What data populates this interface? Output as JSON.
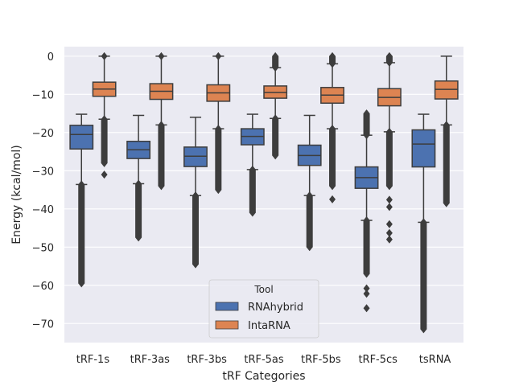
{
  "chart_data": {
    "type": "boxplot",
    "xlabel": "tRF Categories",
    "ylabel": "Energy (kcal/mol)",
    "ylim": [
      -75,
      2.5
    ],
    "yticks": [
      0,
      -10,
      -20,
      -30,
      -40,
      -50,
      -60,
      -70
    ],
    "ytick_labels": [
      "0",
      "−10",
      "−20",
      "−30",
      "−40",
      "−50",
      "−60",
      "−70"
    ],
    "grid": true,
    "categories": [
      "tRF-1s",
      "tRF-3as",
      "tRF-3bs",
      "tRF-5as",
      "tRF-5bs",
      "tRF-5cs",
      "tsRNA"
    ],
    "legend": {
      "title": "Tool",
      "position": "lower center"
    },
    "series": [
      {
        "name": "RNAhybrid",
        "color": "#4c72b0",
        "boxes": [
          {
            "q1": -24.3,
            "median": -20.5,
            "q3": -18.1,
            "whisker_low": -33.6,
            "whisker_high": -15.2,
            "outliers_from": -33.6,
            "outliers_to": -59.5
          },
          {
            "q1": -26.8,
            "median": -24.5,
            "q3": -22.3,
            "whisker_low": -33.4,
            "whisker_high": -15.5,
            "outliers_from": -33.4,
            "outliers_to": -47.5
          },
          {
            "q1": -28.9,
            "median": -26.2,
            "q3": -23.8,
            "whisker_low": -36.5,
            "whisker_high": -16.0,
            "outliers_from": -36.5,
            "outliers_to": -54.5
          },
          {
            "q1": -23.2,
            "median": -21.0,
            "q3": -19.0,
            "whisker_low": -29.7,
            "whisker_high": -15.2,
            "outliers_from": -29.7,
            "outliers_to": -41.0
          },
          {
            "q1": -28.6,
            "median": -26.0,
            "q3": -23.3,
            "whisker_low": -36.5,
            "whisker_high": -15.5,
            "outliers_from": -36.5,
            "outliers_to": -50.0
          },
          {
            "q1": -34.6,
            "median": -31.8,
            "q3": -29.0,
            "whisker_low": -43.0,
            "whisker_high": -20.7,
            "outliers_from": -43.0,
            "outliers_to": -57.0,
            "outliers_high_from": -20.7,
            "outliers_high_to": -15.0,
            "extra_outliers": [
              -60.8,
              -62.2,
              -66.0
            ]
          },
          {
            "q1": -29.0,
            "median": -23.0,
            "q3": -19.3,
            "whisker_low": -43.5,
            "whisker_high": -15.2,
            "outliers_from": -43.5,
            "outliers_to": -71.5
          }
        ]
      },
      {
        "name": "IntaRNA",
        "color": "#dd8452",
        "boxes": [
          {
            "q1": -10.5,
            "median": -8.6,
            "q3": -6.8,
            "whisker_low": -16.5,
            "whisker_high": 0,
            "outliers_from": -16.5,
            "outliers_to": -28.0,
            "extra_outliers": [
              -31.0
            ],
            "upper_outliers": true
          },
          {
            "q1": -11.3,
            "median": -9.2,
            "q3": -7.2,
            "whisker_low": -18.0,
            "whisker_high": 0,
            "outliers_from": -18.0,
            "outliers_to": -34.0,
            "upper_outliers": true
          },
          {
            "q1": -11.8,
            "median": -9.6,
            "q3": -7.5,
            "whisker_low": -19.0,
            "whisker_high": 0,
            "outliers_from": -19.0,
            "outliers_to": -35.0,
            "upper_outliers": true
          },
          {
            "q1": -11.0,
            "median": -9.5,
            "q3": -7.8,
            "whisker_low": -16.3,
            "whisker_high": -3.0,
            "outliers_from": -16.3,
            "outliers_to": -26.0,
            "upper_from": -3.0,
            "upper_to": 0,
            "upper_outliers": true
          },
          {
            "q1": -12.3,
            "median": -10.2,
            "q3": -8.2,
            "whisker_low": -19.0,
            "whisker_high": -2.0,
            "outliers_from": -19.0,
            "outliers_to": -34.0,
            "extra_outliers": [
              -37.5
            ],
            "upper_from": -2.0,
            "upper_to": 0,
            "upper_outliers": true
          },
          {
            "q1": -13.0,
            "median": -10.8,
            "q3": -8.5,
            "whisker_low": -19.8,
            "whisker_high": -1.7,
            "outliers_from": -19.8,
            "outliers_to": -34.0,
            "extra_outliers": [
              -37.6,
              -39.5,
              -44.0,
              -46.3,
              -48.0
            ],
            "upper_from": -1.7,
            "upper_to": 0,
            "upper_outliers": true
          },
          {
            "q1": -11.2,
            "median": -8.7,
            "q3": -6.5,
            "whisker_low": -18.0,
            "whisker_high": 0,
            "outliers_from": -18.0,
            "outliers_to": -38.5
          }
        ]
      }
    ]
  }
}
